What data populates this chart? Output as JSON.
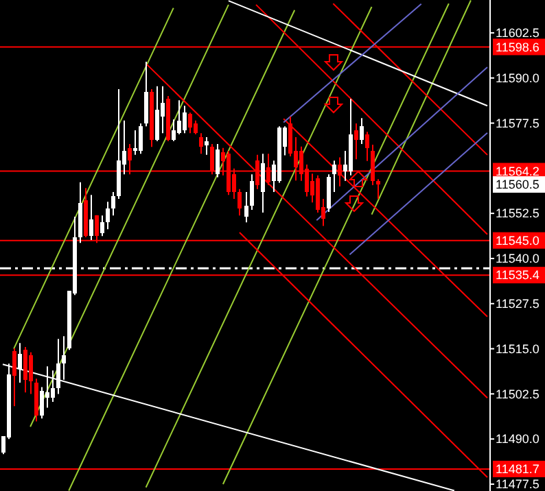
{
  "chart_data": {
    "type": "candlestick",
    "categories": [
      null,
      null,
      null,
      null,
      null,
      null,
      null,
      null,
      null,
      null,
      null,
      null,
      null,
      null,
      null,
      null,
      null,
      null,
      null,
      null,
      null,
      null,
      null,
      null,
      null,
      null,
      null,
      null,
      null,
      null,
      null,
      null,
      null,
      null,
      null,
      null,
      null,
      null,
      null,
      null,
      null,
      null,
      null,
      null,
      null,
      null,
      null,
      null,
      null,
      null,
      null,
      null,
      null,
      null,
      null,
      null,
      null,
      null,
      null,
      null,
      null,
      null,
      null,
      null,
      null,
      null,
      null,
      null,
      null,
      null,
      null,
      null,
      null,
      null,
      null,
      null,
      null,
      null,
      null,
      null,
      null,
      null,
      null,
      null,
      null,
      null,
      null,
      null,
      null
    ],
    "ohlc": [
      [
        11486.2,
        11490.8,
        11485.8,
        11490.8
      ],
      [
        11490.4,
        11510.9,
        11490.0,
        11507.9
      ],
      [
        11514.3,
        11515.1,
        11499.1,
        11507.5
      ],
      [
        11509.4,
        11516.6,
        11505.6,
        11513.6
      ],
      [
        11514.7,
        11515.5,
        11502.9,
        11506.4
      ],
      [
        11513.2,
        11514.0,
        11502.5,
        11506.0
      ],
      [
        11505.6,
        11506.7,
        11494.9,
        11496.5
      ],
      [
        11496.5,
        11504.4,
        11495.7,
        11503.3
      ],
      [
        11501.4,
        11510.1,
        11498.7,
        11502.9
      ],
      [
        11501.4,
        11509.0,
        11500.3,
        11504.1
      ],
      [
        11504.1,
        11517.7,
        11502.5,
        11510.9
      ],
      [
        11510.9,
        11518.5,
        11506.4,
        11513.2
      ],
      [
        11515.1,
        11531.0,
        11514.7,
        11531.0
      ],
      [
        11530.3,
        11551.6,
        11529.9,
        11545.9
      ],
      [
        11545.9,
        11561.1,
        11544.3,
        11555.4
      ],
      [
        11556.1,
        11559.5,
        11545.9,
        11546.2
      ],
      [
        11546.2,
        11557.6,
        11545.1,
        11550.8
      ],
      [
        11551.9,
        11552.0,
        11544.3,
        11546.2
      ],
      [
        11547.0,
        11551.9,
        11546.2,
        11550.0
      ],
      [
        11550.0,
        11555.7,
        11548.1,
        11553.8
      ],
      [
        11553.8,
        11558.4,
        11551.9,
        11557.3
      ],
      [
        11557.3,
        11586.9,
        11556.5,
        11567.2
      ],
      [
        11566.0,
        11578.2,
        11563.3,
        11569.8
      ],
      [
        11570.6,
        11571.7,
        11563.3,
        11567.2
      ],
      [
        11569.8,
        11575.5,
        11568.7,
        11570.6
      ],
      [
        11569.8,
        11577.4,
        11569.0,
        11576.6
      ],
      [
        11577.4,
        11594.5,
        11576.6,
        11586.1
      ],
      [
        11586.1,
        11586.9,
        11570.9,
        11572.8
      ],
      [
        11572.8,
        11587.7,
        11572.5,
        11581.2
      ],
      [
        11579.3,
        11587.7,
        11574.7,
        11583.1
      ],
      [
        11584.2,
        11585.0,
        11572.5,
        11572.8
      ],
      [
        11572.8,
        11578.5,
        11572.5,
        11575.5
      ],
      [
        11574.7,
        11583.8,
        11574.4,
        11578.2
      ],
      [
        11575.5,
        11582.3,
        11574.7,
        11580.4
      ],
      [
        11580.1,
        11580.4,
        11574.7,
        11576.3
      ],
      [
        11577.4,
        11578.2,
        11574.4,
        11574.7
      ],
      [
        11573.6,
        11574.7,
        11569.0,
        11570.9
      ],
      [
        11571.3,
        11573.6,
        11568.7,
        11572.5
      ],
      [
        11570.9,
        11571.7,
        11563.3,
        11564.1
      ],
      [
        11563.3,
        11571.7,
        11562.5,
        11570.2
      ],
      [
        11569.4,
        11570.6,
        11563.0,
        11567.0
      ],
      [
        11569.0,
        11569.8,
        11557.6,
        11558.4
      ],
      [
        11563.3,
        11564.9,
        11556.5,
        11558.4
      ],
      [
        11558.4,
        11559.2,
        11551.9,
        11553.8
      ],
      [
        11551.6,
        11558.4,
        11550.0,
        11554.6
      ],
      [
        11554.6,
        11563.3,
        11553.5,
        11561.4
      ],
      [
        11567.1,
        11568.7,
        11559.2,
        11560.3
      ],
      [
        11558.4,
        11569.0,
        11552.7,
        11566.4
      ],
      [
        11565.2,
        11569.0,
        11560.3,
        11561.0
      ],
      [
        11561.4,
        11567.1,
        11558.4,
        11566.0
      ],
      [
        11561.4,
        11576.6,
        11561.0,
        11576.3
      ],
      [
        11570.9,
        11576.6,
        11568.6,
        11576.3
      ],
      [
        11577.4,
        11579.3,
        11568.3,
        11569.0
      ],
      [
        11569.8,
        11573.6,
        11561.6,
        11565.2
      ],
      [
        11569.8,
        11571.0,
        11561.5,
        11563.3
      ],
      [
        11564.9,
        11566.0,
        11557.2,
        11558.4
      ],
      [
        11561.5,
        11563.5,
        11555.5,
        11557.5
      ],
      [
        11562.2,
        11563.0,
        11552.7,
        11553.5
      ],
      [
        11554.2,
        11556.5,
        11549.0,
        11551.0
      ],
      [
        11553.8,
        11563.3,
        11552.9,
        11562.6
      ],
      [
        11563.3,
        11567.1,
        11558.4,
        11566.0
      ],
      [
        11566.0,
        11568.0,
        11560.0,
        11563.0
      ],
      [
        11564.1,
        11569.8,
        11561.5,
        11566.0
      ],
      [
        11564.1,
        11584.2,
        11563.0,
        11574.4
      ],
      [
        11575.5,
        11577.4,
        11567.5,
        11572.8
      ],
      [
        11572.8,
        11578.9,
        11571.7,
        11576.6
      ],
      [
        11574.4,
        11575.1,
        11567.0,
        11570.6
      ],
      [
        11569.8,
        11571.5,
        11560.3,
        11561.4
      ],
      [
        11561.4,
        11562.0,
        11556.5,
        11560.5
      ],
      null,
      null,
      null,
      null,
      null,
      null,
      null,
      null,
      null,
      null,
      null,
      null,
      null,
      null,
      null,
      null,
      null,
      null,
      null,
      null
    ],
    "colors": [
      "#ffffff",
      "#ffffff",
      "#ff0000",
      "#ffffff",
      "#ff0000",
      "#ff0000",
      "#ff0000",
      "#ffffff",
      "#ffffff",
      "#ffffff",
      "#ffffff",
      "#ffffff",
      "#ffffff",
      "#ffffff",
      "#ffffff",
      "#ff0000",
      "#ffffff",
      "#ff0000",
      "#ffffff",
      "#ffffff",
      "#ffffff",
      "#ffffff",
      "#ffffff",
      "#ff0000",
      "#ffffff",
      "#ffffff",
      "#ffffff",
      "#ff0000",
      "#ffffff",
      "#ffffff",
      "#ff0000",
      "#ffffff",
      "#ffffff",
      "#ffffff",
      "#ff0000",
      "#ff0000",
      "#ff0000",
      "#ffffff",
      "#ff0000",
      "#ffffff",
      "#ff0000",
      "#ff0000",
      "#ff0000",
      "#ff0000",
      "#ffffff",
      "#ffffff",
      "#ff0000",
      "#ffffff",
      "#ff0000",
      "#ffffff",
      "#ffffff",
      "#ffffff",
      "#ff0000",
      "#ff0000",
      "#ff0000",
      "#ff0000",
      "#ff0000",
      "#ff0000",
      "#ff0000",
      "#ffffff",
      "#ffffff",
      "#ff0000",
      "#ffffff",
      "#ffffff",
      "#ff0000",
      "#ffffff",
      "#ff0000",
      "#ff0000",
      "#ff0000",
      null,
      null,
      null,
      null,
      null,
      null,
      null,
      null,
      null,
      null,
      null,
      null,
      null,
      null,
      null,
      null,
      null,
      null,
      null,
      null
    ],
    "series": [
      {
        "type": "line",
        "color": "#9acd32",
        "values": [
          null,
          null,
          11515.0,
          null,
          null,
          null,
          null,
          null,
          null,
          null,
          null,
          null,
          null,
          null,
          null,
          null,
          null,
          null,
          null,
          null,
          null,
          null,
          null,
          null,
          null,
          null,
          null,
          null,
          null,
          null,
          null,
          11609.4,
          null,
          null,
          null,
          null,
          null,
          null,
          null,
          null,
          null,
          null,
          null,
          null,
          null,
          null,
          null,
          null,
          null,
          null,
          null,
          null,
          null,
          null,
          null,
          null,
          null,
          null,
          null,
          null,
          null,
          null,
          null,
          null,
          null,
          null,
          null,
          null,
          null,
          null,
          null,
          null,
          null,
          null,
          null,
          null,
          null,
          null,
          null,
          null,
          null,
          null,
          null,
          null,
          null,
          null,
          null,
          null,
          null
        ]
      },
      {
        "type": "line",
        "color": "#9acd32",
        "values": [
          null,
          null,
          null,
          null,
          null,
          11493.4,
          null,
          null,
          null,
          null,
          null,
          null,
          null,
          null,
          null,
          null,
          null,
          null,
          null,
          null,
          null,
          null,
          null,
          null,
          null,
          null,
          null,
          null,
          null,
          null,
          null,
          null,
          null,
          null,
          null,
          null,
          null,
          null,
          null,
          null,
          null,
          11610.3,
          null,
          null,
          null,
          null,
          null,
          null,
          null,
          null,
          null,
          null,
          null,
          null,
          null,
          null,
          null,
          null,
          null,
          null,
          null,
          null,
          null,
          null,
          null,
          null,
          null,
          null,
          null,
          null,
          null,
          null,
          null,
          null,
          null,
          null,
          null,
          null,
          null,
          null,
          null,
          null,
          null,
          null,
          null,
          null,
          null,
          null,
          null
        ]
      },
      {
        "type": "line",
        "color": "#9acd32",
        "values": [
          null,
          null,
          null,
          null,
          null,
          null,
          null,
          null,
          null,
          null,
          null,
          null,
          11475.7,
          null,
          null,
          null,
          null,
          null,
          null,
          null,
          null,
          null,
          null,
          null,
          null,
          null,
          null,
          null,
          null,
          null,
          null,
          null,
          null,
          null,
          null,
          null,
          null,
          null,
          null,
          null,
          null,
          null,
          null,
          null,
          null,
          null,
          null,
          null,
          null,
          null,
          null,
          null,
          null,
          11608.8,
          null,
          null,
          null,
          null,
          null,
          null,
          null,
          null,
          null,
          null,
          null,
          null,
          null,
          null,
          null,
          null,
          null,
          null,
          null,
          null,
          null,
          null,
          null,
          null,
          null,
          null,
          null,
          null,
          null,
          null,
          null,
          null,
          null,
          null,
          null
        ]
      },
      {
        "type": "line",
        "color": "#9acd32",
        "values": [
          null,
          null,
          null,
          null,
          null,
          null,
          null,
          null,
          null,
          null,
          null,
          null,
          null,
          null,
          null,
          null,
          null,
          null,
          null,
          null,
          null,
          null,
          null,
          null,
          null,
          null,
          11476.6,
          null,
          null,
          null,
          null,
          null,
          null,
          null,
          null,
          null,
          null,
          null,
          null,
          null,
          null,
          null,
          null,
          null,
          null,
          null,
          null,
          null,
          null,
          null,
          null,
          null,
          null,
          null,
          null,
          null,
          null,
          null,
          null,
          null,
          null,
          null,
          null,
          null,
          null,
          null,
          null,
          11609.7,
          null,
          null,
          null,
          null,
          null,
          null,
          null,
          null,
          null,
          null,
          null,
          null,
          null,
          null,
          null,
          null,
          null,
          null,
          null,
          null,
          null
        ]
      },
      {
        "type": "line",
        "color": "#9acd32",
        "values": [
          null,
          null,
          null,
          null,
          null,
          null,
          null,
          null,
          null,
          null,
          null,
          null,
          null,
          null,
          null,
          null,
          null,
          null,
          null,
          null,
          null,
          null,
          null,
          null,
          null,
          null,
          null,
          null,
          null,
          null,
          null,
          null,
          null,
          null,
          null,
          null,
          null,
          null,
          null,
          null,
          11477.5,
          null,
          null,
          null,
          null,
          null,
          null,
          null,
          null,
          null,
          null,
          null,
          null,
          null,
          null,
          null,
          null,
          null,
          null,
          null,
          null,
          null,
          null,
          null,
          null,
          null,
          null,
          null,
          null,
          null,
          null,
          null,
          null,
          null,
          null,
          null,
          null,
          null,
          null,
          null,
          null,
          11610.6,
          null,
          null,
          null,
          null,
          null,
          null,
          null
        ]
      },
      {
        "type": "line",
        "color": "#9acd32",
        "values": [
          null,
          null,
          null,
          null,
          null,
          null,
          null,
          null,
          null,
          null,
          null,
          null,
          null,
          null,
          null,
          null,
          null,
          null,
          null,
          null,
          null,
          null,
          null,
          null,
          null,
          null,
          null,
          null,
          null,
          null,
          null,
          null,
          null,
          null,
          null,
          null,
          null,
          null,
          null,
          null,
          null,
          null,
          null,
          null,
          null,
          null,
          null,
          null,
          null,
          null,
          null,
          null,
          null,
          null,
          null,
          null,
          null,
          null,
          null,
          null,
          null,
          null,
          null,
          null,
          null,
          null,
          null,
          11552.2,
          null,
          null,
          null,
          null,
          null,
          null,
          null,
          null,
          null,
          null,
          null,
          null,
          null,
          null,
          null,
          null,
          null,
          11611.5,
          null,
          null,
          null
        ]
      },
      {
        "type": "line",
        "color": "#ff0000",
        "values": [
          null,
          null,
          null,
          null,
          null,
          null,
          null,
          null,
          null,
          null,
          null,
          null,
          null,
          null,
          null,
          null,
          null,
          null,
          null,
          null,
          null,
          null,
          null,
          null,
          null,
          null,
          null,
          null,
          null,
          null,
          null,
          null,
          null,
          null,
          null,
          null,
          null,
          null,
          null,
          null,
          null,
          null,
          null,
          null,
          null,
          null,
          null,
          null,
          null,
          null,
          null,
          null,
          null,
          null,
          null,
          null,
          null,
          null,
          null,
          null,
          11610.6,
          null,
          null,
          null,
          null,
          null,
          null,
          null,
          null,
          null,
          null,
          null,
          null,
          null,
          null,
          null,
          null,
          null,
          null,
          null,
          null,
          null,
          null,
          null,
          null,
          null,
          null,
          null,
          11568.7
        ]
      },
      {
        "type": "line",
        "color": "#ff0000",
        "values": [
          null,
          null,
          null,
          null,
          null,
          null,
          null,
          null,
          null,
          null,
          null,
          null,
          null,
          null,
          null,
          null,
          null,
          null,
          null,
          null,
          null,
          null,
          null,
          null,
          null,
          null,
          null,
          null,
          null,
          null,
          null,
          null,
          null,
          null,
          null,
          null,
          null,
          null,
          null,
          null,
          null,
          null,
          null,
          null,
          null,
          null,
          11610.3,
          null,
          null,
          null,
          null,
          null,
          null,
          null,
          null,
          null,
          null,
          null,
          null,
          null,
          null,
          null,
          null,
          null,
          null,
          null,
          null,
          null,
          null,
          null,
          null,
          null,
          null,
          null,
          null,
          null,
          null,
          null,
          null,
          null,
          null,
          null,
          null,
          null,
          null,
          null,
          null,
          null,
          11546.7
        ]
      },
      {
        "type": "line",
        "color": "#ff0000",
        "values": [
          null,
          null,
          null,
          null,
          null,
          null,
          null,
          null,
          null,
          null,
          null,
          null,
          null,
          null,
          null,
          null,
          null,
          null,
          null,
          null,
          null,
          null,
          null,
          null,
          null,
          null,
          null,
          null,
          null,
          null,
          null,
          null,
          null,
          null,
          null,
          null,
          null,
          null,
          null,
          null,
          null,
          null,
          null,
          null,
          null,
          null,
          null,
          null,
          null,
          null,
          null,
          11578.7,
          null,
          null,
          null,
          null,
          null,
          null,
          null,
          null,
          null,
          null,
          null,
          null,
          null,
          null,
          null,
          null,
          null,
          null,
          null,
          null,
          null,
          null,
          null,
          null,
          null,
          null,
          null,
          null,
          null,
          null,
          null,
          null,
          null,
          null,
          null,
          null,
          11523.9
        ]
      },
      {
        "type": "line",
        "color": "#ff0000",
        "values": [
          null,
          null,
          null,
          null,
          null,
          null,
          null,
          null,
          null,
          null,
          null,
          null,
          null,
          null,
          null,
          null,
          null,
          null,
          null,
          null,
          null,
          null,
          null,
          null,
          null,
          null,
          11594.0,
          null,
          null,
          null,
          null,
          null,
          null,
          null,
          null,
          null,
          null,
          null,
          null,
          null,
          null,
          null,
          null,
          null,
          null,
          null,
          null,
          null,
          null,
          null,
          null,
          null,
          null,
          null,
          null,
          null,
          null,
          null,
          null,
          null,
          null,
          null,
          null,
          null,
          null,
          null,
          null,
          null,
          null,
          null,
          null,
          null,
          null,
          null,
          null,
          null,
          null,
          null,
          null,
          null,
          null,
          null,
          null,
          null,
          null,
          null,
          null,
          null,
          11501.4
        ]
      },
      {
        "type": "line",
        "color": "#ff0000",
        "values": [
          null,
          null,
          null,
          null,
          null,
          null,
          null,
          null,
          null,
          null,
          null,
          null,
          null,
          null,
          null,
          null,
          null,
          null,
          null,
          null,
          null,
          null,
          null,
          null,
          null,
          null,
          null,
          null,
          null,
          null,
          null,
          null,
          null,
          null,
          null,
          null,
          null,
          null,
          null,
          null,
          null,
          null,
          null,
          11547.2,
          null,
          null,
          null,
          null,
          null,
          null,
          null,
          null,
          null,
          null,
          null,
          null,
          null,
          null,
          null,
          null,
          null,
          null,
          null,
          null,
          null,
          null,
          null,
          null,
          null,
          null,
          null,
          null,
          null,
          null,
          null,
          null,
          null,
          null,
          null,
          null,
          null,
          null,
          null,
          null,
          null,
          null,
          null,
          null,
          11479.4
        ]
      },
      {
        "type": "line",
        "color": "#ffffff",
        "values": [
          null,
          null,
          null,
          null,
          null,
          null,
          null,
          null,
          null,
          null,
          null,
          null,
          null,
          null,
          null,
          null,
          null,
          null,
          null,
          null,
          null,
          null,
          null,
          null,
          null,
          null,
          null,
          null,
          null,
          null,
          null,
          null,
          null,
          null,
          null,
          null,
          null,
          null,
          null,
          null,
          null,
          11611.4,
          null,
          null,
          null,
          null,
          null,
          null,
          null,
          null,
          null,
          null,
          null,
          null,
          null,
          null,
          null,
          null,
          null,
          null,
          null,
          null,
          null,
          null,
          null,
          null,
          null,
          null,
          null,
          null,
          null,
          null,
          null,
          null,
          null,
          null,
          null,
          null,
          null,
          null,
          null,
          null,
          null,
          null,
          null,
          null,
          null,
          null,
          11582.3
        ]
      },
      {
        "type": "line",
        "color": "#ffffff",
        "values": [
          11510.7,
          null,
          null,
          null,
          null,
          null,
          null,
          null,
          null,
          null,
          null,
          null,
          null,
          null,
          null,
          null,
          null,
          null,
          null,
          null,
          null,
          null,
          null,
          null,
          null,
          null,
          null,
          null,
          null,
          null,
          null,
          null,
          null,
          null,
          null,
          null,
          null,
          null,
          null,
          null,
          null,
          null,
          null,
          null,
          null,
          null,
          null,
          null,
          null,
          null,
          null,
          null,
          null,
          null,
          null,
          null,
          null,
          null,
          null,
          null,
          null,
          null,
          null,
          null,
          null,
          null,
          null,
          null,
          null,
          null,
          null,
          null,
          null,
          null,
          null,
          null,
          null,
          null,
          null,
          null,
          null,
          null,
          11475.7,
          null,
          null,
          null,
          null,
          null,
          null
        ]
      },
      {
        "type": "line",
        "color": "#6666cc",
        "values": [
          null,
          null,
          null,
          null,
          null,
          null,
          null,
          null,
          null,
          null,
          null,
          null,
          null,
          null,
          null,
          null,
          null,
          null,
          null,
          null,
          null,
          null,
          null,
          null,
          null,
          null,
          null,
          null,
          null,
          null,
          null,
          null,
          null,
          null,
          null,
          null,
          null,
          null,
          null,
          null,
          null,
          null,
          null,
          null,
          null,
          null,
          null,
          null,
          null,
          null,
          null,
          11577.7,
          null,
          null,
          null,
          null,
          null,
          null,
          null,
          null,
          null,
          null,
          null,
          null,
          null,
          null,
          null,
          null,
          null,
          null,
          null,
          null,
          null,
          null,
          null,
          null,
          11610.5,
          null,
          null,
          null,
          null,
          null,
          null,
          null,
          null,
          null,
          null,
          null,
          null
        ]
      },
      {
        "type": "line",
        "color": "#6666cc",
        "values": [
          null,
          null,
          null,
          null,
          null,
          null,
          null,
          null,
          null,
          null,
          null,
          null,
          null,
          null,
          null,
          null,
          null,
          null,
          null,
          null,
          null,
          null,
          null,
          null,
          null,
          null,
          null,
          null,
          null,
          null,
          null,
          null,
          null,
          null,
          null,
          null,
          null,
          null,
          null,
          null,
          null,
          null,
          null,
          null,
          null,
          null,
          null,
          null,
          null,
          null,
          null,
          null,
          null,
          null,
          null,
          null,
          null,
          11550.6,
          null,
          null,
          null,
          null,
          null,
          null,
          null,
          null,
          null,
          null,
          null,
          null,
          null,
          null,
          null,
          null,
          null,
          null,
          null,
          null,
          null,
          null,
          null,
          null,
          null,
          null,
          null,
          null,
          null,
          null,
          11593.0
        ]
      },
      {
        "type": "line",
        "color": "#6666cc",
        "values": [
          null,
          null,
          null,
          null,
          null,
          null,
          null,
          null,
          null,
          null,
          null,
          null,
          null,
          null,
          null,
          null,
          null,
          null,
          null,
          null,
          null,
          null,
          null,
          null,
          null,
          null,
          null,
          null,
          null,
          null,
          null,
          null,
          null,
          null,
          null,
          null,
          null,
          null,
          null,
          null,
          null,
          null,
          null,
          null,
          null,
          null,
          null,
          null,
          null,
          null,
          null,
          null,
          null,
          null,
          null,
          null,
          null,
          null,
          null,
          null,
          null,
          null,
          null,
          11541.1,
          null,
          null,
          null,
          null,
          null,
          null,
          null,
          null,
          null,
          null,
          null,
          null,
          null,
          null,
          null,
          null,
          null,
          null,
          null,
          null,
          null,
          null,
          null,
          null,
          11574.8
        ]
      }
    ],
    "ylim": [
      11475.6,
      11611.6
    ],
    "yticks": [
      {
        "value": 11477.5,
        "label": "11477.5"
      },
      {
        "value": 11490,
        "label": "11490.0"
      },
      {
        "value": 11502.5,
        "label": "11502.5"
      },
      {
        "value": 11515,
        "label": "11515.0"
      },
      {
        "value": 11527.5,
        "label": "11527.5"
      },
      {
        "value": 11540,
        "label": "11540.0"
      },
      {
        "value": 11552.5,
        "label": "11552.5"
      },
      {
        "value": 11577.5,
        "label": "11577.5"
      },
      {
        "value": 11590,
        "label": "11590.0"
      },
      {
        "value": 11602.5,
        "label": "11602.5"
      }
    ],
    "tick_labels": "y",
    "ref_lines": [
      {
        "axis": "y",
        "value": 11598.6,
        "label": "11598.6",
        "color": "#ff0000"
      },
      {
        "axis": "y",
        "value": 11564.2,
        "label": "11564.2",
        "color": "#ff0000"
      },
      {
        "axis": "y",
        "value": 11545.0,
        "label": "11545.0",
        "color": "#ff0000"
      },
      {
        "axis": "y",
        "value": 11535.4,
        "label": "11535.4",
        "color": "#ff0000"
      },
      {
        "axis": "y",
        "value": 11481.7,
        "label": "11481.7",
        "color": "#ff0000"
      },
      {
        "axis": "y",
        "value": 11537.3,
        "label": null,
        "color": "#ffffff",
        "line_style": "dashed"
      }
    ],
    "annotations": [
      {
        "text": "11560.5",
        "y": 11560.5
      }
    ]
  }
}
